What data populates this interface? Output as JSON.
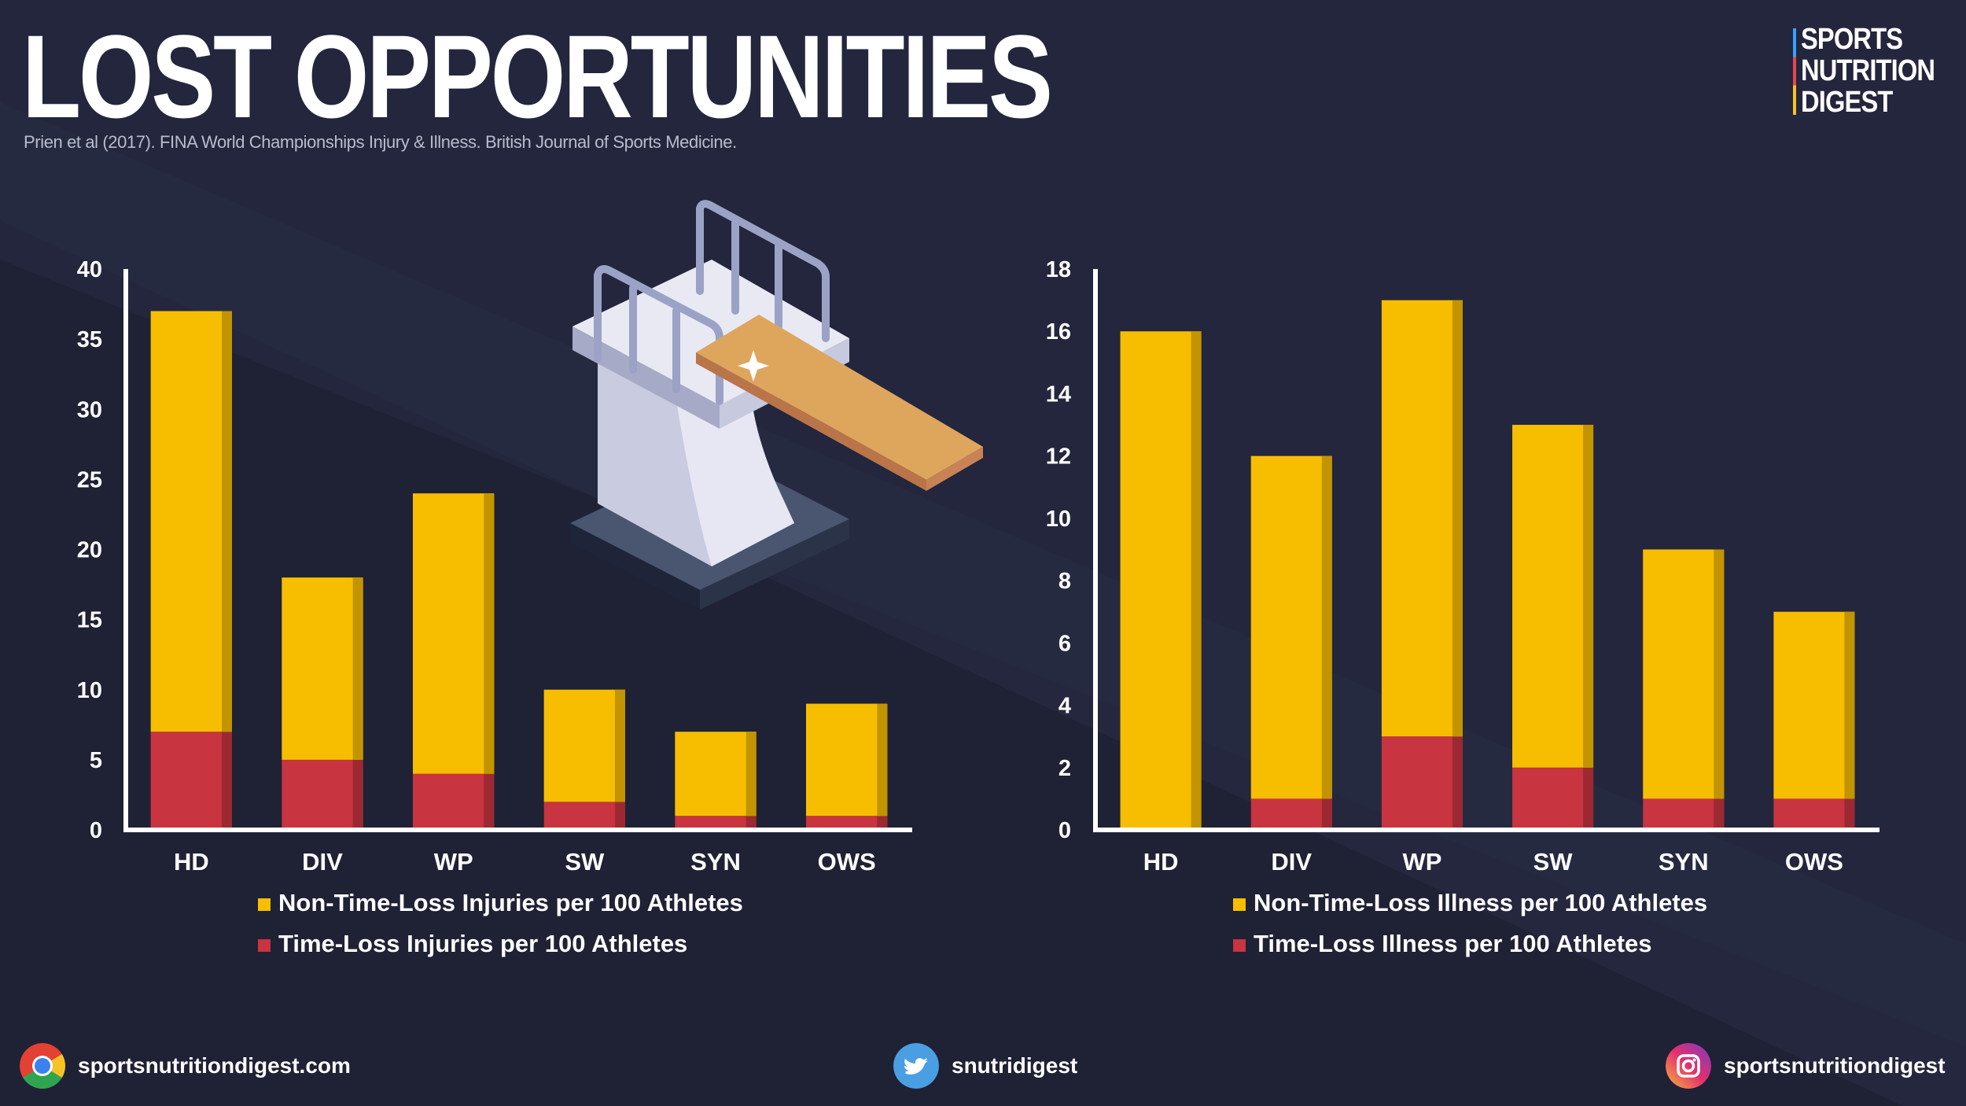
{
  "header": {
    "title": "LOST OPPORTUNITIES",
    "citation": "Prien et al (2017). FINA World Championships Injury & Illness. British Journal of Sports Medicine."
  },
  "logo": {
    "line1": "SPORTS",
    "line2": "NUTRITION",
    "line3": "DIGEST"
  },
  "colors": {
    "background": "#252840",
    "non_time_loss": "#F7BE00",
    "time_loss": "#C8343F",
    "axis": "#FFFFFF"
  },
  "chart_data": [
    {
      "type": "bar",
      "stacked": true,
      "categories": [
        "HD",
        "DIV",
        "WP",
        "SW",
        "SYN",
        "OWS"
      ],
      "series": [
        {
          "name": "Time-Loss Injuries per 100 Athletes",
          "values": [
            7,
            5,
            4,
            2,
            1,
            1
          ]
        },
        {
          "name": "Non-Time-Loss Injuries per 100 Athletes",
          "values": [
            30,
            13,
            20,
            8,
            6,
            8
          ]
        }
      ],
      "yticks": [
        0,
        5,
        10,
        15,
        20,
        25,
        30,
        35,
        40
      ],
      "ylim": [
        0,
        40
      ],
      "legend": [
        "Non-Time-Loss Injuries per 100 Athletes",
        "Time-Loss Injuries per 100 Athletes"
      ]
    },
    {
      "type": "bar",
      "stacked": true,
      "categories": [
        "HD",
        "DIV",
        "WP",
        "SW",
        "SYN",
        "OWS"
      ],
      "series": [
        {
          "name": "Time-Loss Illness per 100 Athletes",
          "values": [
            0,
            1,
            3,
            2,
            1,
            1
          ]
        },
        {
          "name": "Non-Time-Loss Illness per 100 Athletes",
          "values": [
            16,
            11,
            14,
            11,
            8,
            6
          ]
        }
      ],
      "yticks": [
        0,
        2,
        4,
        6,
        8,
        10,
        12,
        14,
        16,
        18
      ],
      "ylim": [
        0,
        18
      ],
      "legend": [
        "Non-Time-Loss Illness per 100 Athletes",
        "Time-Loss Illness per 100 Athletes"
      ]
    }
  ],
  "footer": {
    "website": "sportsnutritiondigest.com",
    "twitter": "snutridigest",
    "instagram": "sportsnutritiondigest",
    "website_icon": "chrome-icon",
    "twitter_icon": "twitter-icon",
    "instagram_icon": "instagram-icon"
  }
}
